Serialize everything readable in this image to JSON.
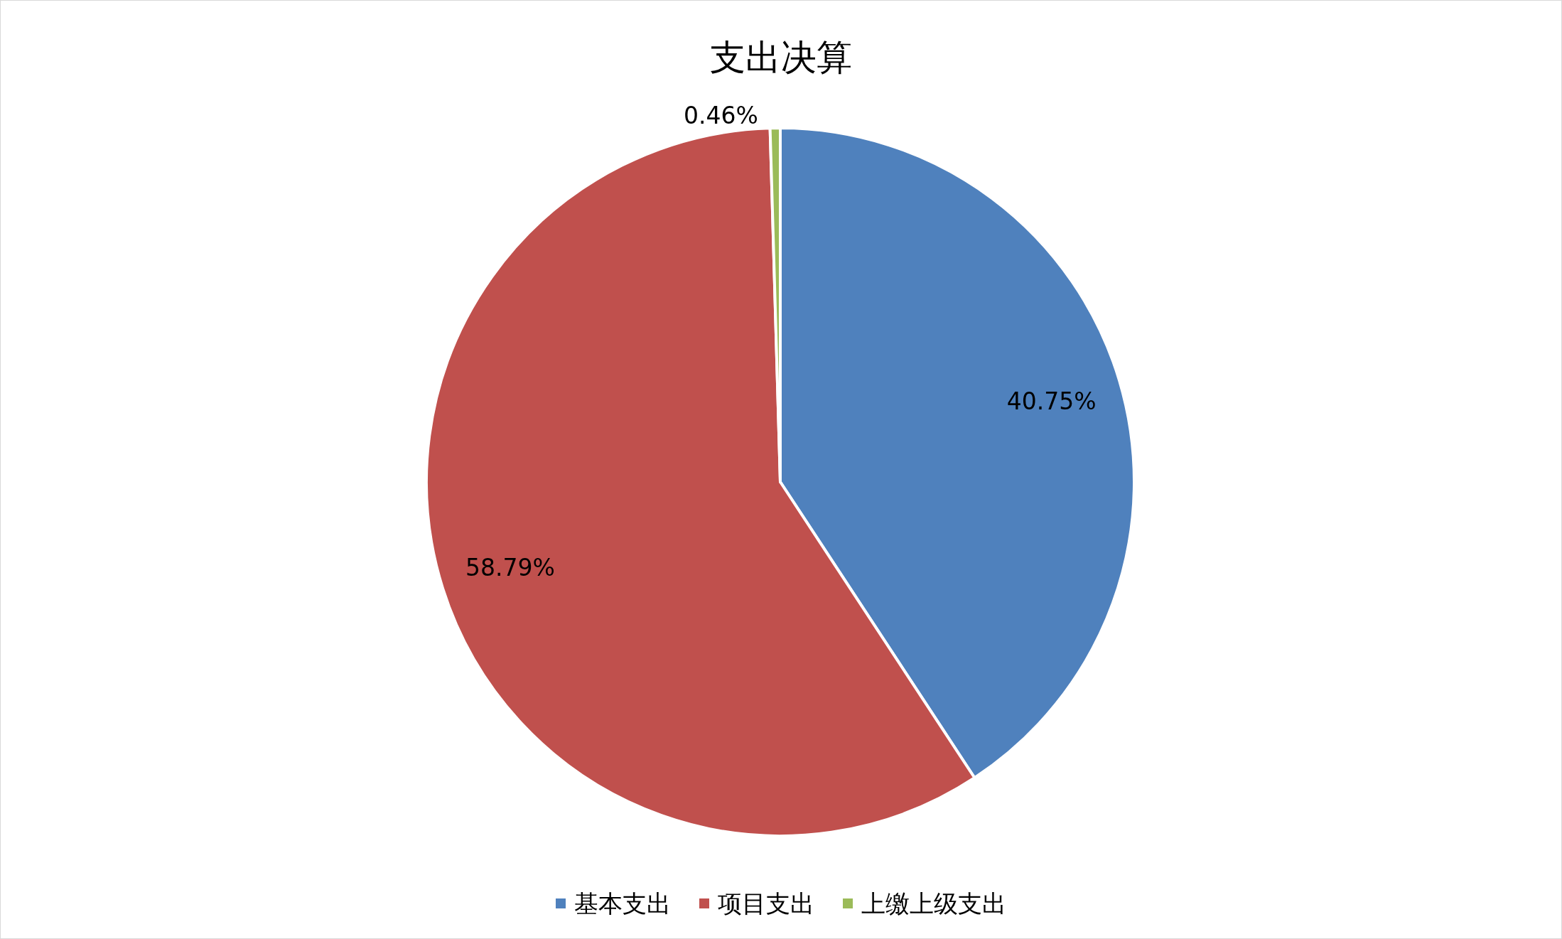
{
  "chart_data": {
    "type": "pie",
    "title": "支出决算",
    "categories": [
      "基本支出",
      "项目支出",
      "上缴上级支出"
    ],
    "values": [
      40.75,
      58.79,
      0.46
    ],
    "value_labels": [
      "40.75%",
      "58.79%",
      "0.46%"
    ],
    "colors": [
      "#4f81bd",
      "#c0504d",
      "#9bbb59"
    ],
    "legend": "bottom"
  }
}
